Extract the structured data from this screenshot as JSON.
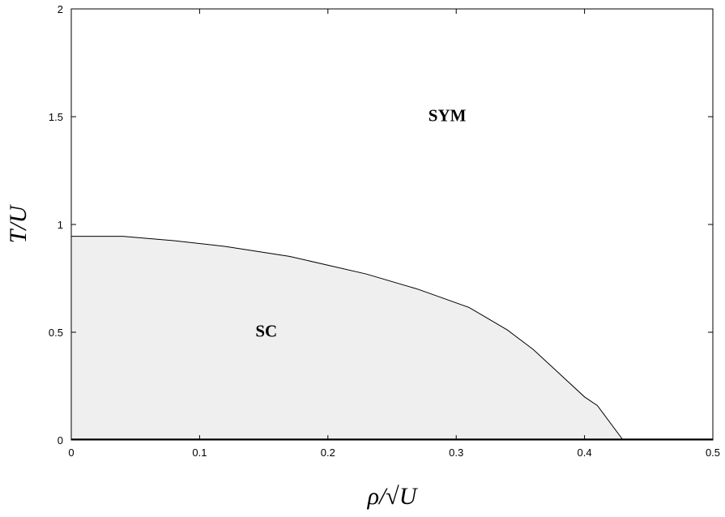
{
  "chart_data": {
    "type": "area",
    "title": "",
    "xlabel": "ρ/√U",
    "ylabel": "T/U",
    "xlim": [
      0,
      0.5
    ],
    "ylim": [
      0,
      2
    ],
    "x_ticks": [
      "0",
      "0.1",
      "0.2",
      "0.3",
      "0.4",
      "0.5"
    ],
    "y_ticks": [
      "0",
      "0.5",
      "1",
      "1.5",
      "2"
    ],
    "grid": false,
    "legend": "none",
    "series": [
      {
        "x": [
          0,
          0.04,
          0.08,
          0.12,
          0.17,
          0.23,
          0.27,
          0.31,
          0.34,
          0.36,
          0.38,
          0.4,
          0.41,
          0.43
        ],
        "y": [
          0.945,
          0.945,
          0.925,
          0.898,
          0.852,
          0.77,
          0.7,
          0.615,
          0.51,
          0.42,
          0.31,
          0.2,
          0.16,
          0.0
        ],
        "fill": "#efefef",
        "line": "#000000"
      }
    ],
    "annotations": [
      {
        "text": "SYM",
        "x": 0.293,
        "y": 1.48
      },
      {
        "text": "SC",
        "x": 0.152,
        "y": 0.48
      }
    ]
  }
}
